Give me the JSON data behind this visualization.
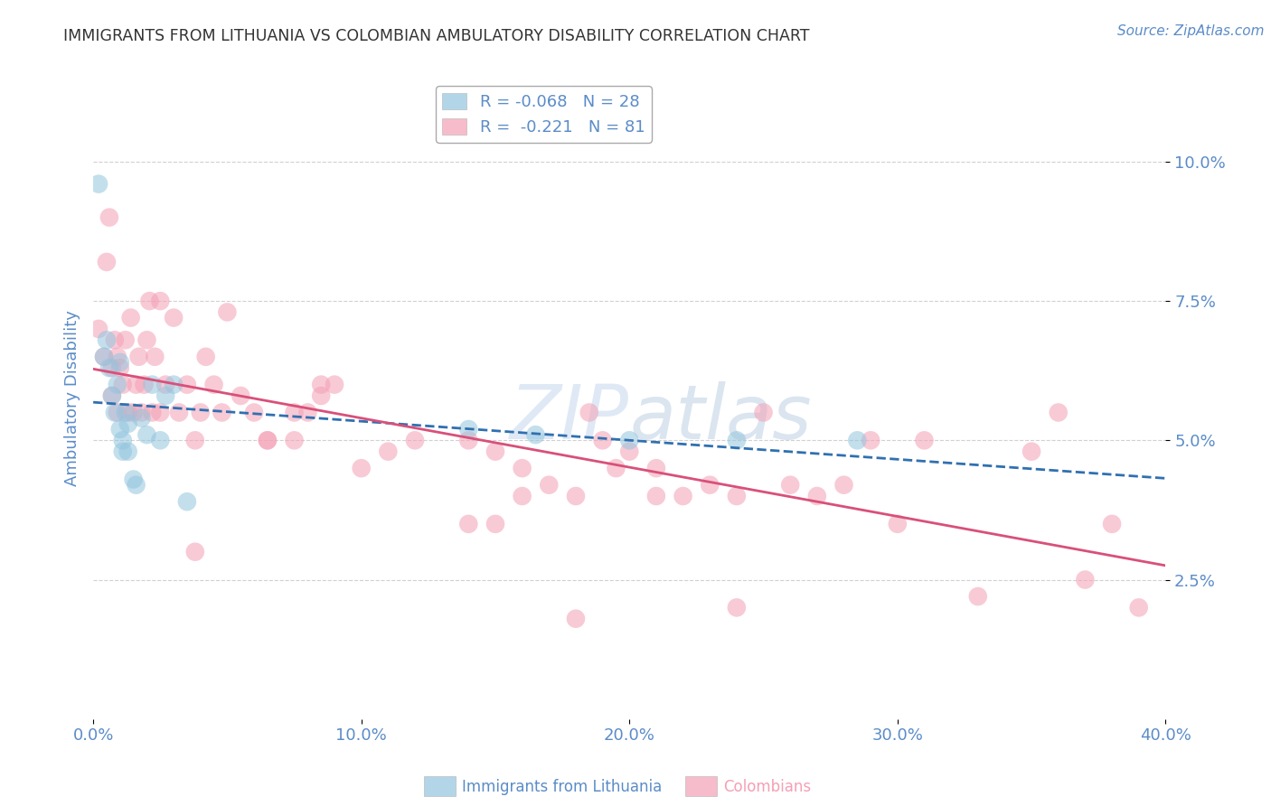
{
  "title": "IMMIGRANTS FROM LITHUANIA VS COLOMBIAN AMBULATORY DISABILITY CORRELATION CHART",
  "source": "Source: ZipAtlas.com",
  "xlabel_ticks": [
    "0.0%",
    "10.0%",
    "20.0%",
    "30.0%",
    "40.0%"
  ],
  "xlabel_vals": [
    0.0,
    0.1,
    0.2,
    0.3,
    0.4
  ],
  "ylabel_ticks": [
    "2.5%",
    "5.0%",
    "7.5%",
    "10.0%"
  ],
  "ylabel_vals": [
    0.025,
    0.05,
    0.075,
    0.1
  ],
  "ylabel_label": "Ambulatory Disability",
  "legend_label_blue": "R = -0.068   N = 28",
  "legend_label_pink": "R =  -0.221   N = 81",
  "bottom_label_blue": "Immigrants from Lithuania",
  "bottom_label_pink": "Colombians",
  "watermark": "ZIPAtlas",
  "blue_color": "#92c5de",
  "pink_color": "#f4a0b5",
  "blue_line_color": "#3070b0",
  "pink_line_color": "#d9507a",
  "background_color": "#ffffff",
  "grid_color": "#cccccc",
  "title_color": "#333333",
  "axis_label_color": "#5b8cc8",
  "tick_color": "#5b8cc8",
  "xlim": [
    0.0,
    0.4
  ],
  "ylim": [
    0.0,
    0.115
  ],
  "lithuania_x": [
    0.002,
    0.004,
    0.005,
    0.006,
    0.007,
    0.008,
    0.009,
    0.01,
    0.01,
    0.011,
    0.011,
    0.012,
    0.013,
    0.013,
    0.015,
    0.016,
    0.018,
    0.02,
    0.022,
    0.025,
    0.027,
    0.03,
    0.035,
    0.14,
    0.165,
    0.2,
    0.24,
    0.285
  ],
  "lithuania_y": [
    0.096,
    0.065,
    0.068,
    0.063,
    0.058,
    0.055,
    0.06,
    0.052,
    0.064,
    0.05,
    0.048,
    0.055,
    0.053,
    0.048,
    0.043,
    0.042,
    0.054,
    0.051,
    0.06,
    0.05,
    0.058,
    0.06,
    0.039,
    0.052,
    0.051,
    0.05,
    0.05,
    0.05
  ],
  "colombia_x": [
    0.002,
    0.004,
    0.005,
    0.006,
    0.007,
    0.007,
    0.008,
    0.009,
    0.009,
    0.01,
    0.011,
    0.012,
    0.013,
    0.014,
    0.015,
    0.016,
    0.017,
    0.018,
    0.019,
    0.02,
    0.021,
    0.022,
    0.023,
    0.025,
    0.027,
    0.03,
    0.032,
    0.035,
    0.038,
    0.04,
    0.042,
    0.045,
    0.048,
    0.055,
    0.06,
    0.065,
    0.075,
    0.08,
    0.085,
    0.09,
    0.1,
    0.11,
    0.12,
    0.14,
    0.15,
    0.16,
    0.17,
    0.18,
    0.19,
    0.2,
    0.21,
    0.22,
    0.23,
    0.24,
    0.25,
    0.26,
    0.27,
    0.28,
    0.29,
    0.31,
    0.33,
    0.35,
    0.36,
    0.37,
    0.38,
    0.39,
    0.185,
    0.3,
    0.195,
    0.15,
    0.038,
    0.025,
    0.05,
    0.065,
    0.075,
    0.085,
    0.14,
    0.16,
    0.18,
    0.21,
    0.24
  ],
  "colombia_y": [
    0.07,
    0.065,
    0.082,
    0.09,
    0.063,
    0.058,
    0.068,
    0.065,
    0.055,
    0.063,
    0.06,
    0.068,
    0.055,
    0.072,
    0.055,
    0.06,
    0.065,
    0.055,
    0.06,
    0.068,
    0.075,
    0.055,
    0.065,
    0.055,
    0.06,
    0.072,
    0.055,
    0.06,
    0.05,
    0.055,
    0.065,
    0.06,
    0.055,
    0.058,
    0.055,
    0.05,
    0.05,
    0.055,
    0.058,
    0.06,
    0.045,
    0.048,
    0.05,
    0.05,
    0.048,
    0.045,
    0.042,
    0.04,
    0.05,
    0.048,
    0.045,
    0.04,
    0.042,
    0.04,
    0.055,
    0.042,
    0.04,
    0.042,
    0.05,
    0.05,
    0.022,
    0.048,
    0.055,
    0.025,
    0.035,
    0.02,
    0.055,
    0.035,
    0.045,
    0.035,
    0.03,
    0.075,
    0.073,
    0.05,
    0.055,
    0.06,
    0.035,
    0.04,
    0.018,
    0.04,
    0.02
  ]
}
